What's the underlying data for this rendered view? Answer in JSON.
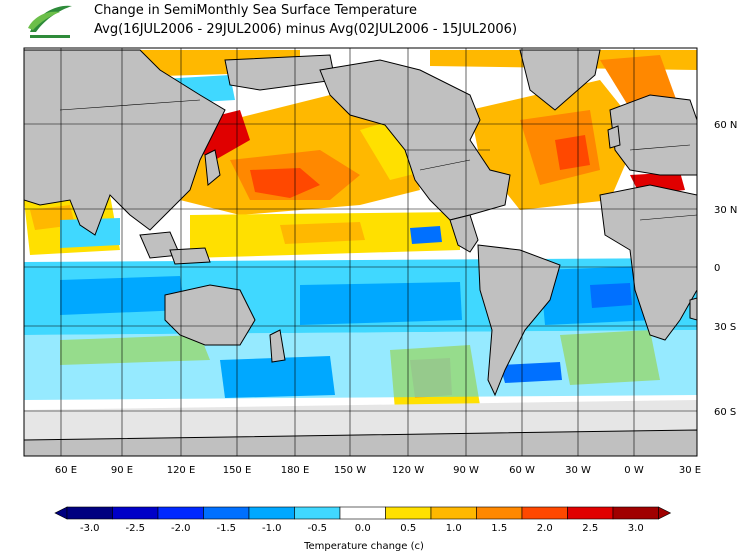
{
  "header": {
    "title_line1": "Change in SemiMonthly Sea Surface Temperature",
    "title_line2": "Avg(16JUL2006 - 29JUL2006) minus Avg(02JUL2006 - 15JUL2006)",
    "logo_icon": "leaf-logo-icon"
  },
  "map": {
    "lon_labels": [
      "60 E",
      "90 E",
      "120 E",
      "150 E",
      "180 E",
      "150 W",
      "120 W",
      "90 W",
      "60 W",
      "30 W",
      "0 W",
      "30 E"
    ],
    "lat_labels": [
      "60 N",
      "30 N",
      "0",
      "30 S",
      "60 S"
    ],
    "land_color": "#c0c0c0",
    "ice_color": "#e6e6e6"
  },
  "legend": {
    "title": "Temperature change  (c)",
    "ticks": [
      "-3.0",
      "-2.5",
      "-2.0",
      "-1.5",
      "-1.0",
      "-0.5",
      "0.0",
      "0.5",
      "1.0",
      "1.5",
      "2.0",
      "2.5",
      "3.0"
    ],
    "colors": [
      "#000080",
      "#0000c8",
      "#0028ff",
      "#0070ff",
      "#00a8ff",
      "#40d8ff",
      "#ffffff",
      "#ffe000",
      "#ffb800",
      "#ff8800",
      "#ff4800",
      "#e00000",
      "#a00000"
    ]
  }
}
